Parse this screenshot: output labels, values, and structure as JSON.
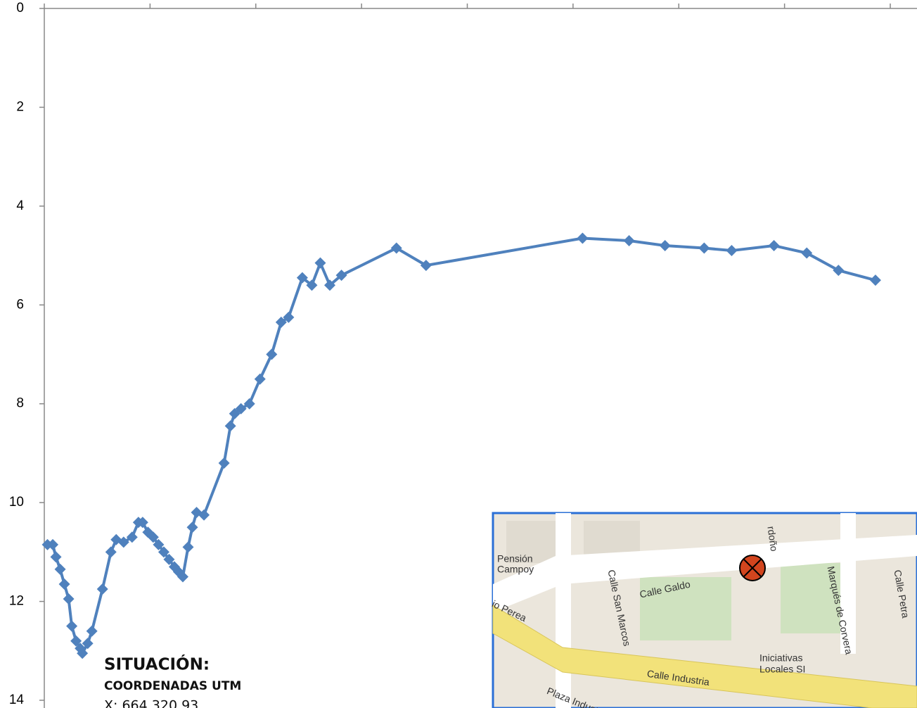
{
  "chart_data": {
    "type": "line",
    "x": [
      0.03,
      0.08,
      0.11,
      0.15,
      0.19,
      0.23,
      0.26,
      0.3,
      0.34,
      0.36,
      0.41,
      0.45,
      0.55,
      0.63,
      0.68,
      0.75,
      0.83,
      0.89,
      0.93,
      0.98,
      1.03,
      1.08,
      1.13,
      1.18,
      1.23,
      1.27,
      1.31,
      1.36,
      1.4,
      1.44,
      1.51,
      1.7,
      1.76,
      1.8,
      1.86,
      1.94,
      2.04,
      2.15,
      2.24,
      2.31,
      2.44,
      2.53,
      2.61,
      2.7,
      2.81,
      3.33,
      3.61,
      5.09,
      5.53,
      5.87,
      6.24,
      6.5,
      6.9,
      7.21,
      7.51,
      7.86
    ],
    "series": [
      {
        "color": "#4f81bd",
        "values": [
          10.85,
          10.85,
          11.1,
          11.35,
          11.65,
          11.95,
          12.5,
          12.8,
          12.95,
          13.05,
          12.85,
          12.6,
          11.75,
          11.0,
          10.75,
          10.8,
          10.7,
          10.4,
          10.4,
          10.6,
          10.7,
          10.85,
          11.0,
          11.15,
          11.3,
          11.4,
          11.5,
          10.9,
          10.5,
          10.2,
          10.25,
          9.2,
          8.45,
          8.2,
          8.1,
          8.0,
          7.5,
          7.0,
          6.35,
          6.25,
          5.45,
          5.6,
          5.15,
          5.6,
          5.4,
          4.85,
          5.2,
          4.65,
          4.7,
          4.8,
          4.85,
          4.9,
          4.8,
          4.95,
          5.3,
          5.5
        ]
      }
    ],
    "xlim": [
      0,
      8
    ],
    "xticks": [
      0,
      1,
      2,
      3,
      4,
      5,
      6,
      7,
      8
    ],
    "ylim": [
      0,
      14
    ],
    "yticks": [
      0,
      2,
      4,
      6,
      8,
      10,
      12,
      14
    ],
    "y_inverted": true,
    "annotations": [
      "SITUACIÓN:",
      "COORDENADAS UTM",
      "X:  664.320,93"
    ]
  },
  "map": {
    "labels": [
      "Pensión",
      "Campoy",
      "Calle San Marcos",
      "Calle Galdo",
      "Marqués de Corvera",
      "Calle Petra",
      "Calle Industria",
      "Iniciativas",
      "Locales SI",
      "Plaza Industria",
      "io Perea",
      "rdoño"
    ]
  }
}
